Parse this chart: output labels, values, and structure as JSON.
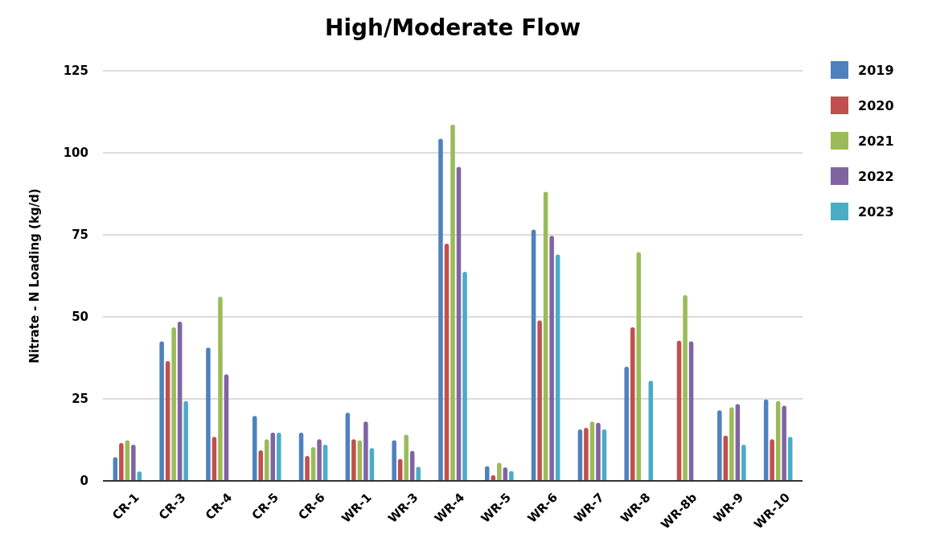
{
  "chart_data": {
    "type": "bar",
    "title": "High/Moderate Flow",
    "ylabel": "Nitrate - N Loading (kg/d)",
    "categories": [
      "CR-1",
      "CR-3",
      "CR-4",
      "CR-5",
      "CR-6",
      "WR-1",
      "WR-3",
      "WR-4",
      "WR-5",
      "WR-6",
      "WR-7",
      "WR-8",
      "WR-8b",
      "WR-9",
      "WR-10"
    ],
    "series": [
      {
        "name": "2019",
        "color": "#4f81bd",
        "values": [
          7.2,
          42.5,
          40.6,
          19.8,
          14.7,
          20.8,
          12.4,
          104.3,
          4.5,
          76.6,
          15.7,
          34.8,
          null,
          21.5,
          24.8
        ]
      },
      {
        "name": "2020",
        "color": "#c0504d",
        "values": [
          11.5,
          36.5,
          13.4,
          9.3,
          7.6,
          12.7,
          6.7,
          72.3,
          1.7,
          48.9,
          16.2,
          46.8,
          42.7,
          13.8,
          12.7
        ]
      },
      {
        "name": "2021",
        "color": "#9bbb59",
        "values": [
          12.4,
          46.8,
          56.1,
          12.7,
          10.3,
          12.4,
          14.1,
          108.6,
          5.5,
          88.1,
          18.1,
          69.7,
          56.6,
          22.4,
          24.3
        ]
      },
      {
        "name": "2022",
        "color": "#8064a2",
        "values": [
          11,
          48.5,
          32.5,
          14.7,
          12.7,
          18.1,
          9.1,
          95.7,
          4.1,
          74.7,
          17.7,
          null,
          42.5,
          23.4,
          22.9
        ]
      },
      {
        "name": "2023",
        "color": "#4bacc6",
        "values": [
          2.9,
          24.3,
          null,
          14.7,
          11,
          10,
          4.3,
          63.7,
          3,
          69,
          15.7,
          30.5,
          null,
          11,
          13.4
        ]
      }
    ],
    "ylim": [
      0,
      125
    ],
    "yticks": [
      0,
      25,
      50,
      75,
      100,
      125
    ],
    "grid": "y",
    "legend": "top right"
  }
}
